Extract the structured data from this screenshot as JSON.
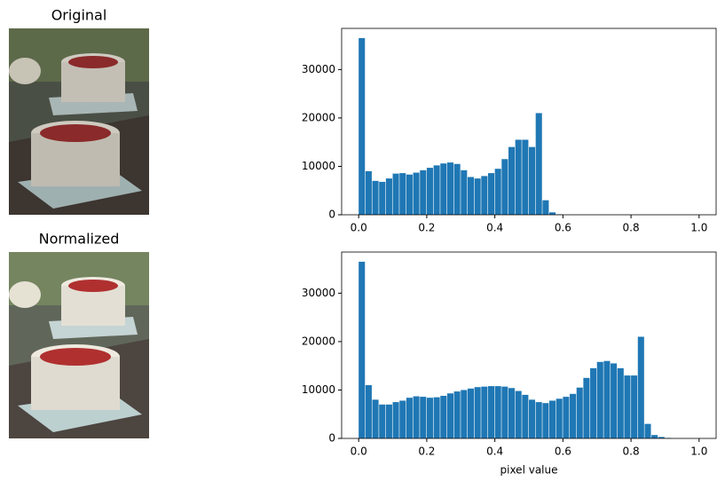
{
  "images": {
    "top_title": "Original",
    "bottom_title": "Normalized"
  },
  "chart_data": [
    {
      "type": "histogram",
      "color": "#1f77b4",
      "bins": [
        0,
        0.02,
        0.04,
        0.06,
        0.08,
        0.1,
        0.12,
        0.14,
        0.16,
        0.18,
        0.2,
        0.22,
        0.24,
        0.26,
        0.28,
        0.3,
        0.32,
        0.34,
        0.36,
        0.38,
        0.4,
        0.42,
        0.44,
        0.46,
        0.48,
        0.5,
        0.52,
        0.54,
        0.56,
        0.58,
        0.6,
        0.62,
        0.64,
        0.66,
        0.68,
        0.7,
        0.72,
        0.74,
        0.76,
        0.78,
        0.8,
        0.82,
        0.84,
        0.86,
        0.88,
        0.9,
        0.92,
        0.94,
        0.96,
        0.98,
        1.0
      ],
      "values": [
        36500,
        9000,
        7000,
        6800,
        7500,
        8500,
        8600,
        8300,
        8700,
        9200,
        9700,
        10200,
        10600,
        10800,
        10500,
        9200,
        7800,
        7500,
        8000,
        8600,
        9500,
        11500,
        14000,
        15500,
        15500,
        14000,
        21000,
        3000,
        500,
        100,
        0,
        0,
        0,
        0,
        0,
        0,
        0,
        0,
        0,
        0,
        0,
        0,
        0,
        0,
        0,
        0,
        0,
        0,
        0,
        0
      ],
      "xlim": [
        -0.05,
        1.05
      ],
      "ylim": [
        0,
        38500
      ],
      "xticks": [
        {
          "value": 0,
          "label": "0.0"
        },
        0.2,
        0.4,
        0.6,
        0.8,
        {
          "value": 1,
          "label": "1.0"
        }
      ],
      "yticks": [
        0,
        10000,
        20000,
        30000
      ]
    },
    {
      "type": "histogram",
      "color": "#1f77b4",
      "x_label": "pixel value",
      "bins": [
        0,
        0.02,
        0.04,
        0.06,
        0.08,
        0.1,
        0.12,
        0.14,
        0.16,
        0.18,
        0.2,
        0.22,
        0.24,
        0.26,
        0.28,
        0.3,
        0.32,
        0.34,
        0.36,
        0.38,
        0.4,
        0.42,
        0.44,
        0.46,
        0.48,
        0.5,
        0.52,
        0.54,
        0.56,
        0.58,
        0.6,
        0.62,
        0.64,
        0.66,
        0.68,
        0.7,
        0.72,
        0.74,
        0.76,
        0.78,
        0.8,
        0.82,
        0.84,
        0.86,
        0.88,
        0.9,
        0.92,
        0.94,
        0.96,
        0.98,
        1.0
      ],
      "values": [
        36500,
        11000,
        8000,
        7000,
        7000,
        7500,
        7800,
        8400,
        8700,
        8600,
        8400,
        8500,
        8800,
        9300,
        9700,
        10000,
        10300,
        10600,
        10700,
        10800,
        10800,
        10700,
        10400,
        9800,
        9000,
        8000,
        7500,
        7300,
        7800,
        8200,
        8600,
        9200,
        10500,
        12500,
        14500,
        15800,
        16000,
        15500,
        14500,
        13000,
        13000,
        21000,
        3000,
        700,
        300,
        100,
        0,
        0,
        0,
        0
      ],
      "xlim": [
        -0.05,
        1.05
      ],
      "ylim": [
        0,
        38500
      ],
      "xticks": [
        {
          "value": 0,
          "label": "0.0"
        },
        0.2,
        0.4,
        0.6,
        0.8,
        {
          "value": 1,
          "label": "1.0"
        }
      ],
      "yticks": [
        0,
        10000,
        20000,
        30000
      ]
    }
  ]
}
